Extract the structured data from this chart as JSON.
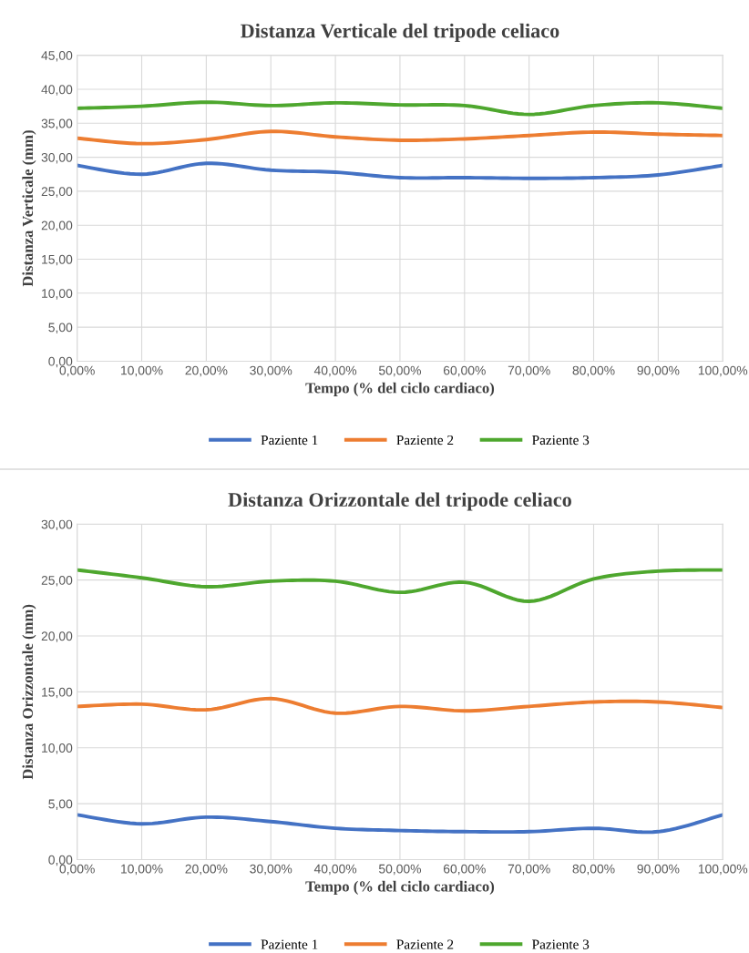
{
  "chart_data": [
    {
      "type": "line",
      "title": "Distanza Verticale del tripode celiaco",
      "xlabel": "Tempo (% del ciclo cardiaco)",
      "ylabel": "Distanza Verticale (mm)",
      "x": [
        0,
        10,
        20,
        30,
        40,
        50,
        60,
        70,
        80,
        90,
        100
      ],
      "series": [
        {
          "name": "Paziente 1",
          "color": "#4472c4",
          "values": [
            28.8,
            27.5,
            29.1,
            28.1,
            27.8,
            27.0,
            27.0,
            26.9,
            27.0,
            27.4,
            28.8
          ]
        },
        {
          "name": "Paziente 2",
          "color": "#ed7d31",
          "values": [
            32.8,
            32.0,
            32.6,
            33.8,
            33.0,
            32.5,
            32.7,
            33.2,
            33.7,
            33.4,
            33.2
          ]
        },
        {
          "name": "Paziente 3",
          "color": "#4ea72e",
          "values": [
            37.2,
            37.5,
            38.1,
            37.6,
            38.0,
            37.7,
            37.6,
            36.3,
            37.6,
            38.0,
            37.2
          ]
        }
      ],
      "xlim": [
        0,
        100
      ],
      "xticks": [
        {
          "value": 0,
          "label": "0,00%"
        },
        {
          "value": 10,
          "label": "10,00%"
        },
        {
          "value": 20,
          "label": "20,00%"
        },
        {
          "value": 30,
          "label": "30,00%"
        },
        {
          "value": 40,
          "label": "40,00%"
        },
        {
          "value": 50,
          "label": "50,00%"
        },
        {
          "value": 60,
          "label": "60,00%"
        },
        {
          "value": 70,
          "label": "70,00%"
        },
        {
          "value": 80,
          "label": "80,00%"
        },
        {
          "value": 90,
          "label": "90,00%"
        },
        {
          "value": 100,
          "label": "100,00%"
        }
      ],
      "ylim": [
        0,
        45
      ],
      "yticks": [
        {
          "value": 0,
          "label": "0,00"
        },
        {
          "value": 5,
          "label": "5,00"
        },
        {
          "value": 10,
          "label": "10,00"
        },
        {
          "value": 15,
          "label": "15,00"
        },
        {
          "value": 20,
          "label": "20,00"
        },
        {
          "value": 25,
          "label": "25,00"
        },
        {
          "value": 30,
          "label": "30,00"
        },
        {
          "value": 35,
          "label": "35,00"
        },
        {
          "value": 40,
          "label": "40,00"
        },
        {
          "value": 45,
          "label": "45,00"
        }
      ],
      "grid": true,
      "legend": "bottom",
      "marker": "none",
      "line_style": "solid"
    },
    {
      "type": "line",
      "title": "Distanza Orizzontale del tripode celiaco",
      "xlabel": "Tempo (% del ciclo cardiaco)",
      "ylabel": "Distanza Orizzontale (mm)",
      "x": [
        0,
        10,
        20,
        30,
        40,
        50,
        60,
        70,
        80,
        90,
        100
      ],
      "series": [
        {
          "name": "Paziente 1",
          "color": "#4472c4",
          "values": [
            4.0,
            3.2,
            3.8,
            3.4,
            2.8,
            2.6,
            2.5,
            2.5,
            2.8,
            2.5,
            4.0
          ]
        },
        {
          "name": "Paziente 2",
          "color": "#ed7d31",
          "values": [
            13.7,
            13.9,
            13.4,
            14.4,
            13.1,
            13.7,
            13.3,
            13.7,
            14.1,
            14.1,
            13.6
          ]
        },
        {
          "name": "Paziente 3",
          "color": "#4ea72e",
          "values": [
            25.9,
            25.2,
            24.4,
            24.9,
            24.9,
            23.9,
            24.8,
            23.1,
            25.1,
            25.8,
            25.9
          ]
        }
      ],
      "xlim": [
        0,
        100
      ],
      "xticks": [
        {
          "value": 0,
          "label": "0,00%"
        },
        {
          "value": 10,
          "label": "10,00%"
        },
        {
          "value": 20,
          "label": "20,00%"
        },
        {
          "value": 30,
          "label": "30,00%"
        },
        {
          "value": 40,
          "label": "40,00%"
        },
        {
          "value": 50,
          "label": "50,00%"
        },
        {
          "value": 60,
          "label": "60,00%"
        },
        {
          "value": 70,
          "label": "70,00%"
        },
        {
          "value": 80,
          "label": "80,00%"
        },
        {
          "value": 90,
          "label": "90,00%"
        },
        {
          "value": 100,
          "label": "100,00%"
        }
      ],
      "ylim": [
        0,
        30
      ],
      "yticks": [
        {
          "value": 0,
          "label": "0,00"
        },
        {
          "value": 5,
          "label": "5,00"
        },
        {
          "value": 10,
          "label": "10,00"
        },
        {
          "value": 15,
          "label": "15,00"
        },
        {
          "value": 20,
          "label": "20,00"
        },
        {
          "value": 25,
          "label": "25,00"
        },
        {
          "value": 30,
          "label": "30,00"
        }
      ],
      "grid": true,
      "legend": "bottom",
      "marker": "none",
      "line_style": "solid"
    }
  ]
}
